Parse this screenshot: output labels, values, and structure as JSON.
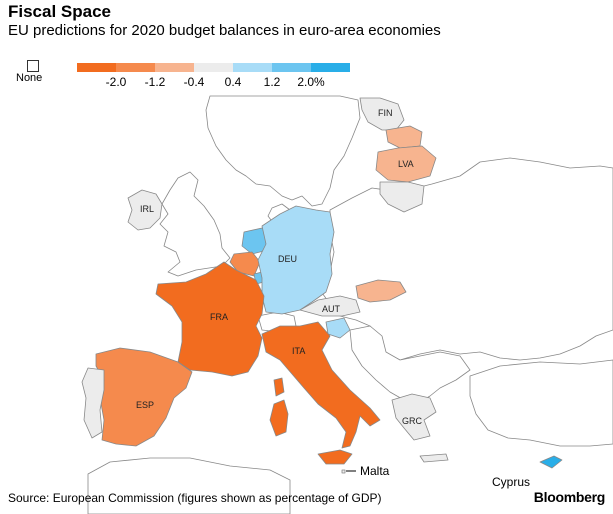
{
  "header": {
    "title": "Fiscal Space",
    "subtitle": "EU predictions for 2020 budget balances in euro-area economies"
  },
  "legend": {
    "none_label": "None",
    "ticks": [
      "-2.0",
      "-1.2",
      "-0.4",
      "0.4",
      "1.2",
      "2.0%"
    ],
    "colors": [
      "#f26c1f",
      "#f58a4d",
      "#f7b48f",
      "#ececec",
      "#a8dcf7",
      "#6cc5f0",
      "#29aee8"
    ]
  },
  "colors": {
    "neutral_land": "#ffffff",
    "border": "#888888",
    "no_data": "#ececec"
  },
  "countries": {
    "FIN": "FIN",
    "LVA": "LVA",
    "IRL": "IRL",
    "DEU": "DEU",
    "AUT": "AUT",
    "FRA": "FRA",
    "ITA": "ITA",
    "ESP": "ESP",
    "GRC": "GRC"
  },
  "callouts": {
    "malta": "Malta",
    "cyprus": "Cyprus"
  },
  "footer": {
    "source": "Source: European Commission (figures shown as percentage of GDP)",
    "brand": "Bloomberg"
  }
}
